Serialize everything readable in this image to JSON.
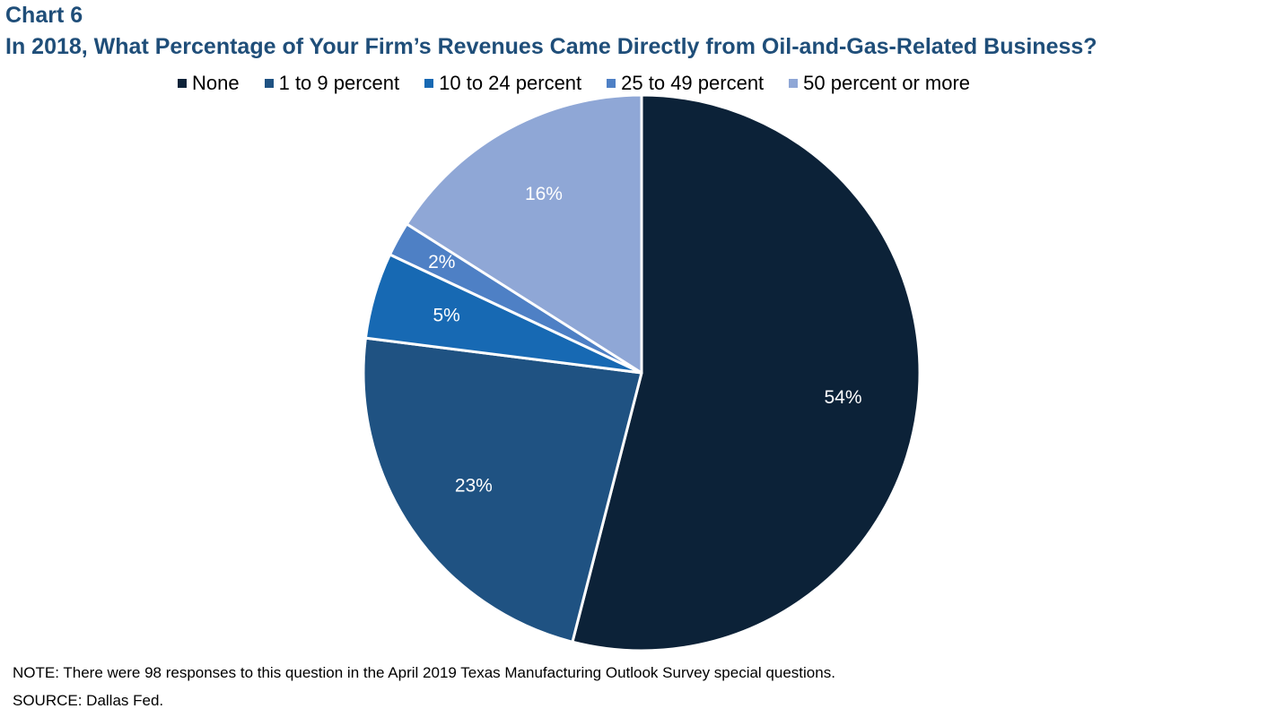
{
  "header": {
    "chart_number": "Chart 6",
    "title": "In 2018, What Percentage of Your Firm’s Revenues Came Directly from Oil-and-Gas-Related Business?"
  },
  "chart_data": {
    "type": "pie",
    "title": "In 2018, What Percentage of Your Firm’s Revenues Came Directly from Oil-and-Gas-Related Business?",
    "legend_position": "top",
    "slices": [
      {
        "label": "None",
        "value": 54,
        "display": "54%",
        "color": "#0c2238"
      },
      {
        "label": "1 to 9 percent",
        "value": 23,
        "display": "23%",
        "color": "#1f5282"
      },
      {
        "label": "10 to 24 percent",
        "value": 5,
        "display": "5%",
        "color": "#1769b3"
      },
      {
        "label": "25 to 49 percent",
        "value": 2,
        "display": "2%",
        "color": "#4e80c5"
      },
      {
        "label": "50 percent or more",
        "value": 16,
        "display": "16%",
        "color": "#8fa7d6"
      }
    ]
  },
  "footer": {
    "note": "NOTE: There were 98 responses to this question in the April 2019 Texas Manufacturing Outlook Survey special questions.",
    "source": "SOURCE: Dallas Fed."
  }
}
